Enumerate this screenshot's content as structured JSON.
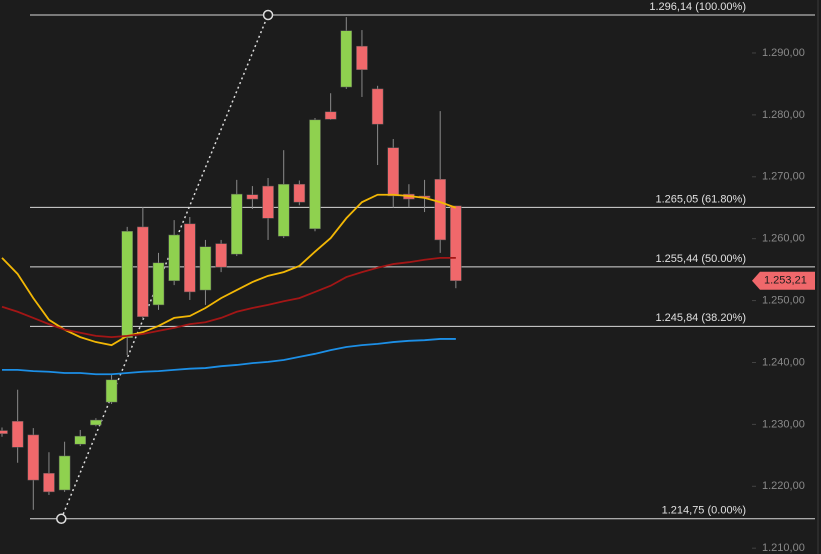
{
  "chart_data": {
    "type": "candlestick",
    "open": [
      1229.0,
      1230.5,
      1228.3,
      1222.1,
      1219.4,
      1226.8,
      1229.9,
      1233.6,
      1244.0,
      1261.9,
      1249.3,
      1253.2,
      1262.4,
      1251.7,
      1259.2,
      1257.5,
      1267.1,
      1268.5,
      1260.4,
      1268.8,
      1261.6,
      1280.5,
      1284.5,
      1291.1,
      1284.2,
      1274.7,
      1267.2,
      1266.9,
      1269.6,
      1265.3
    ],
    "high": [
      1229.5,
      1235.6,
      1229.4,
      1225.5,
      1227.2,
      1229.1,
      1231.0,
      1238.0,
      1261.9,
      1265.1,
      1257.7,
      1263.0,
      1263.5,
      1259.8,
      1259.8,
      1269.5,
      1268.5,
      1269.8,
      1274.3,
      1269.4,
      1279.5,
      1283.5,
      1295.8,
      1293.7,
      1284.7,
      1276.1,
      1268.8,
      1269.5,
      1280.6,
      1265.3
    ],
    "low": [
      1228.0,
      1223.8,
      1216.2,
      1218.6,
      1219.1,
      1226.5,
      1229.7,
      1233.3,
      1241.2,
      1246.9,
      1248.5,
      1252.5,
      1250.1,
      1249.3,
      1254.6,
      1257.2,
      1264.8,
      1259.8,
      1260.1,
      1265.4,
      1261.2,
      1279.2,
      1284.2,
      1282.9,
      1271.9,
      1265.0,
      1265.1,
      1264.3,
      1257.7,
      1252.0
    ],
    "close": [
      1228.5,
      1226.3,
      1221.0,
      1219.1,
      1224.9,
      1228.1,
      1230.7,
      1237.2,
      1261.2,
      1247.4,
      1256.1,
      1260.6,
      1251.4,
      1258.7,
      1255.4,
      1267.2,
      1266.4,
      1263.3,
      1268.8,
      1265.9,
      1279.2,
      1279.3,
      1293.6,
      1287.3,
      1278.5,
      1266.9,
      1266.4,
      1266.6,
      1259.8,
      1253.21
    ],
    "up_color": "#8fd14f",
    "down_color": "#f0686b",
    "series": [
      {
        "color": "#f2b705",
        "values": [
          1256.9,
          1254.3,
          1250.4,
          1246.9,
          1245.3,
          1244.1,
          1243.3,
          1242.8,
          1244.3,
          1244.9,
          1245.9,
          1247.2,
          1247.5,
          1248.8,
          1250.4,
          1251.7,
          1253.0,
          1254.0,
          1254.6,
          1255.6,
          1257.9,
          1260.1,
          1263.3,
          1265.9,
          1267.1,
          1267.1,
          1266.9,
          1266.6,
          1265.9,
          1265.0
        ]
      },
      {
        "color": "#a31616",
        "values": [
          1249.0,
          1248.2,
          1247.2,
          1246.2,
          1245.3,
          1244.8,
          1244.3,
          1244.1,
          1244.3,
          1244.6,
          1245.1,
          1245.6,
          1246.2,
          1246.5,
          1247.2,
          1248.2,
          1248.8,
          1249.3,
          1249.9,
          1250.4,
          1251.4,
          1252.4,
          1253.8,
          1254.6,
          1255.3,
          1255.9,
          1256.2,
          1256.6,
          1256.9,
          1256.9
        ]
      },
      {
        "color": "#1c8fe6",
        "values": [
          1238.8,
          1238.8,
          1238.6,
          1238.5,
          1238.3,
          1238.3,
          1238.1,
          1238.1,
          1238.3,
          1238.5,
          1238.6,
          1238.8,
          1239.0,
          1239.1,
          1239.4,
          1239.6,
          1239.9,
          1240.1,
          1240.4,
          1240.9,
          1241.4,
          1242.0,
          1242.5,
          1242.8,
          1243.0,
          1243.3,
          1243.5,
          1243.6,
          1243.8,
          1243.8
        ]
      }
    ],
    "levels": [
      {
        "value": 1296.14,
        "label": "1.296,14 (100.00%)"
      },
      {
        "value": 1265.05,
        "label": "1.265,05 (61.80%)"
      },
      {
        "value": 1255.44,
        "label": "1.255,44 (50.00%)"
      },
      {
        "value": 1245.84,
        "label": "1.245,84 (38.20%)"
      },
      {
        "value": 1214.75,
        "label": "1.214,75 (0.00%)"
      }
    ],
    "last_price": {
      "value": 1253.21,
      "label": "1.253,21"
    },
    "last_price_color": "#f0686b",
    "ylim": [
      1209.06,
      1298.56
    ],
    "yticks": [
      {
        "value": 1290,
        "label": "1.290,00"
      },
      {
        "value": 1280,
        "label": "1.280,00"
      },
      {
        "value": 1270,
        "label": "1.270,00"
      },
      {
        "value": 1260,
        "label": "1.260,00"
      },
      {
        "value": 1250,
        "label": "1.250,00"
      },
      {
        "value": 1240,
        "label": "1.240,00"
      },
      {
        "value": 1230,
        "label": "1.230,00"
      },
      {
        "value": 1220,
        "label": "1.220,00"
      },
      {
        "value": 1210,
        "label": "1.210,00"
      }
    ]
  }
}
